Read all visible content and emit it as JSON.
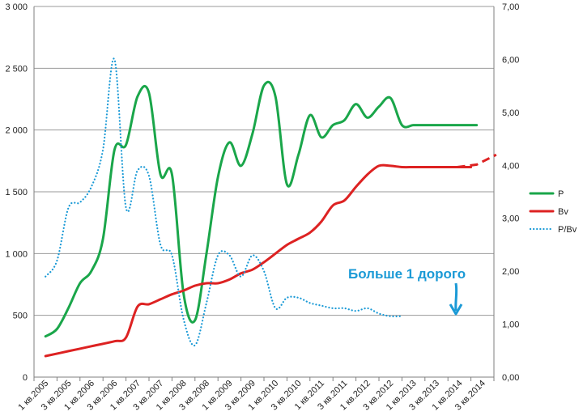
{
  "chart_data": {
    "type": "line",
    "title": "",
    "xlabel": "",
    "ylabel": "",
    "y_left_ticks": [
      "0",
      "500",
      "1 000",
      "1 500",
      "2 000",
      "2 500",
      "3 000"
    ],
    "y_left_lim": [
      0,
      3000
    ],
    "y_right_ticks": [
      "0,00",
      "1,00",
      "2,00",
      "3,00",
      "4,00",
      "5,00",
      "6,00",
      "7,00"
    ],
    "y_right_lim": [
      0,
      7
    ],
    "x_tick_labels": [
      "1 кв.2005",
      "3 кв.2005",
      "1 кв.2006",
      "3 кв.2006",
      "1 кв.2007",
      "3 кв.2007",
      "1 кв.2008",
      "3 кв.2008",
      "1 кв.2009",
      "3 кв.2009",
      "1 кв.2010",
      "3 кв.2010",
      "1 кв.2011",
      "3 кв.2011",
      "1 кв.2012",
      "3 кв.2012",
      "1 кв.2013",
      "3 кв.2013",
      "1 кв.2014",
      "3 кв.2014"
    ],
    "grid": true,
    "legend_position": "right",
    "series": [
      {
        "name": "P",
        "axis": "left",
        "color": "#1aa64a",
        "style": "solid",
        "x": [
          0,
          0.5,
          1,
          1.5,
          2,
          2.5,
          3,
          3.5,
          4,
          4.5,
          5,
          5.5,
          6,
          6.5,
          7,
          7.5,
          8,
          8.5,
          9,
          9.5,
          10,
          10.5,
          11,
          11.5,
          12,
          12.5,
          13,
          13.5,
          14,
          14.5,
          15,
          15.5,
          16,
          16.5,
          17,
          17.5,
          18,
          18.5,
          18.75
        ],
        "y": [
          330,
          390,
          560,
          760,
          860,
          1120,
          1840,
          1880,
          2270,
          2300,
          1640,
          1640,
          680,
          460,
          1000,
          1620,
          1900,
          1710,
          1970,
          2360,
          2270,
          1560,
          1800,
          2120,
          1940,
          2040,
          2080,
          2210,
          2100,
          2190,
          2260,
          2040,
          2040,
          2040,
          2040,
          2040,
          2040,
          2040,
          2040
        ]
      },
      {
        "name": "Bv",
        "axis": "left",
        "color": "#dd2222",
        "style": "solid",
        "x": [
          0,
          1,
          2,
          3,
          3.5,
          4,
          4.5,
          5,
          5.5,
          6,
          6.5,
          7,
          7.5,
          8,
          8.5,
          9,
          9.5,
          10,
          10.5,
          11,
          11.5,
          12,
          12.5,
          13,
          13.5,
          14,
          14.5,
          15,
          15.5,
          16,
          16.5,
          17,
          17.5,
          18,
          18.5
        ],
        "y": [
          170,
          210,
          250,
          290,
          320,
          570,
          590,
          630,
          670,
          700,
          740,
          760,
          760,
          790,
          840,
          870,
          930,
          1000,
          1070,
          1120,
          1170,
          1260,
          1390,
          1430,
          1540,
          1640,
          1710,
          1710,
          1700,
          1700,
          1700,
          1700,
          1700,
          1700,
          1700
        ]
      },
      {
        "name": "P/Bv",
        "axis": "right",
        "color": "#1b9ad6",
        "style": "dotted",
        "x": [
          0,
          0.5,
          1,
          1.5,
          2,
          2.5,
          3,
          3.5,
          4,
          4.5,
          5,
          5.5,
          6,
          6.5,
          7,
          7.5,
          8,
          8.5,
          9,
          9.5,
          10,
          10.5,
          11,
          11.5,
          12,
          12.5,
          13,
          13.5,
          14,
          14.5,
          15,
          15.5
        ],
        "y": [
          1.9,
          2.2,
          3.2,
          3.3,
          3.6,
          4.3,
          6.0,
          3.2,
          3.9,
          3.8,
          2.5,
          2.3,
          1.1,
          0.6,
          1.4,
          2.3,
          2.3,
          1.9,
          2.3,
          2.0,
          1.3,
          1.5,
          1.5,
          1.4,
          1.35,
          1.3,
          1.3,
          1.25,
          1.3,
          1.2,
          1.15,
          1.15
        ]
      }
    ],
    "annotations": [
      {
        "text": "Больше 1 дорого",
        "color": "#1b9ad6"
      }
    ],
    "legend": [
      {
        "label": "P",
        "color": "#1aa64a",
        "style": "solid"
      },
      {
        "label": "Bv",
        "color": "#dd2222",
        "style": "solid"
      },
      {
        "label": "P/Bv",
        "color": "#1b9ad6",
        "style": "dotted"
      }
    ]
  }
}
